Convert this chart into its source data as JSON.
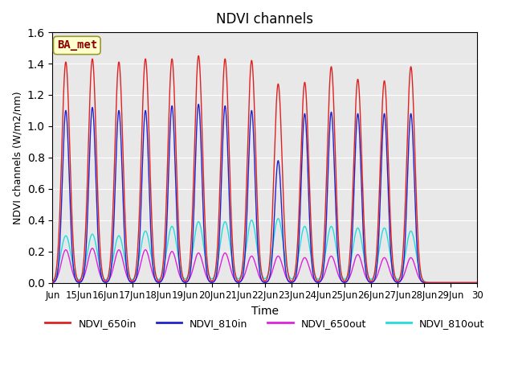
{
  "title": "NDVI channels",
  "xlabel": "Time",
  "ylabel": "NDVI channels (W/m2/nm)",
  "ylim": [
    0,
    1.6
  ],
  "background_color": "#e8e8e8",
  "annotation_text": "BA_met",
  "annotation_color": "#8B0000",
  "annotation_bg": "#ffffcc",
  "series": {
    "NDVI_650in": {
      "color": "#dd2222"
    },
    "NDVI_810in": {
      "color": "#2222cc"
    },
    "NDVI_650out": {
      "color": "#dd22dd"
    },
    "NDVI_810out": {
      "color": "#22dddd"
    }
  },
  "x_tick_labels": [
    "Jun",
    "15Jun",
    "16Jun",
    "17Jun",
    "18Jun",
    "19Jun",
    "20Jun",
    "21Jun",
    "22Jun",
    "23Jun",
    "24Jun",
    "25Jun",
    "26Jun",
    "27Jun",
    "28Jun",
    "29Jun",
    "30"
  ],
  "peak_heights_650in": [
    1.41,
    1.43,
    1.41,
    1.43,
    1.43,
    1.45,
    1.43,
    1.42,
    1.27,
    1.28,
    1.38,
    1.3,
    1.29,
    1.38,
    0.0,
    0.0
  ],
  "peak_heights_810in": [
    1.1,
    1.12,
    1.1,
    1.1,
    1.13,
    1.14,
    1.13,
    1.1,
    0.78,
    1.08,
    1.09,
    1.08,
    1.08,
    1.08,
    0.0,
    0.0
  ],
  "peak_heights_650out": [
    0.21,
    0.22,
    0.21,
    0.21,
    0.2,
    0.19,
    0.19,
    0.17,
    0.17,
    0.16,
    0.17,
    0.18,
    0.16,
    0.16,
    0.0,
    0.0
  ],
  "peak_heights_810out": [
    0.3,
    0.31,
    0.3,
    0.33,
    0.36,
    0.39,
    0.39,
    0.4,
    0.41,
    0.36,
    0.36,
    0.35,
    0.35,
    0.33,
    0.0,
    0.0
  ],
  "num_days": 16,
  "start_day": 14.0,
  "samples_per_day": 300,
  "yticks": [
    0.0,
    0.2,
    0.4,
    0.6,
    0.8,
    1.0,
    1.2,
    1.4,
    1.6
  ]
}
